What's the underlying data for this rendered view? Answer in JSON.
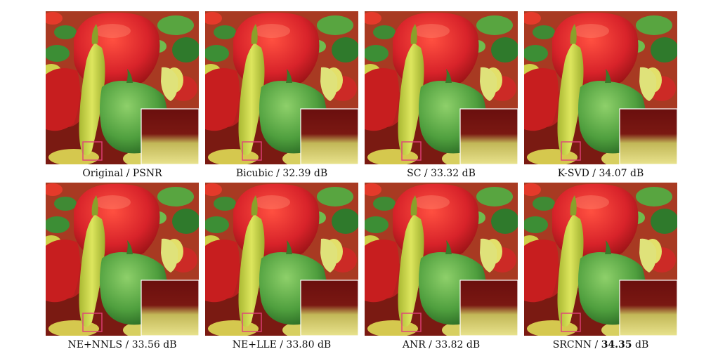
{
  "figure": {
    "panels": [
      {
        "method": "Original",
        "sep": " / ",
        "metric": "PSNR",
        "unit": "",
        "best": false
      },
      {
        "method": "Bicubic",
        "sep": " / ",
        "metric": "32.39",
        "unit": " dB",
        "best": false
      },
      {
        "method": "SC",
        "sep": " / ",
        "metric": "33.32",
        "unit": " dB",
        "best": false
      },
      {
        "method": "K-SVD",
        "sep": " / ",
        "metric": "34.07",
        "unit": " dB",
        "best": false
      },
      {
        "method": "NE+NNLS",
        "sep": " / ",
        "metric": "33.56",
        "unit": " dB",
        "best": false
      },
      {
        "method": "NE+LLE",
        "sep": " / ",
        "metric": "33.80",
        "unit": " dB",
        "best": false
      },
      {
        "method": "ANR",
        "sep": " / ",
        "metric": "33.82",
        "unit": " dB",
        "best": false
      },
      {
        "method": "SRCNN",
        "sep": " / ",
        "metric": "34.35",
        "unit": " dB",
        "best": true
      }
    ],
    "colors": {
      "background": "#a83a22",
      "red_pepper": "#d8232a",
      "yellow_pepper": "#c7d64a",
      "green_pepper": "#5aa848",
      "small_pepper": "#e8d84a",
      "crop_box": "#e0407a",
      "inset_dark": "#6a0f0e",
      "inset_light": "#e8e28c"
    }
  }
}
